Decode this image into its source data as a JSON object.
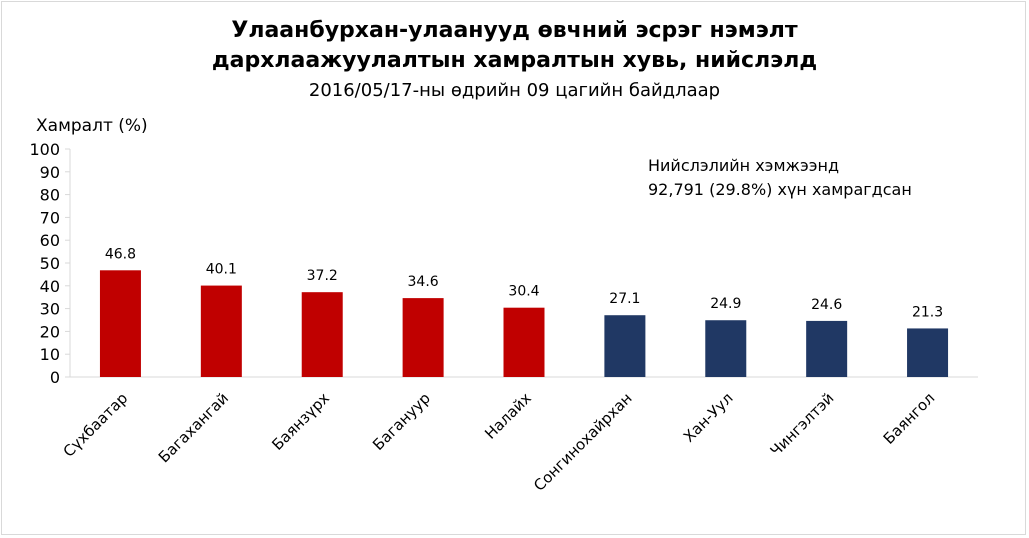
{
  "chart_data": {
    "type": "bar",
    "title": [
      "Улаанбурхан-улаанууд өвчний эсрэг нэмэлт",
      "дархлаажуулалтын хамралтын хувь, нийслэлд"
    ],
    "subtitle": "2016/05/17-ны өдрийн 09 цагийн байдлаар",
    "xlabel": "",
    "ylabel": "Хамралт (%)",
    "ylim": [
      0,
      100
    ],
    "yticks": [
      "0",
      "10",
      "20",
      "30",
      "40",
      "50",
      "60",
      "70",
      "80",
      "90",
      "100"
    ],
    "categories": [
      "Сүхбаатар",
      "Багахангай",
      "Баянзүрх",
      "Багануур",
      "Налайх",
      "Сонгинохайрхан",
      "Хан-Уул",
      "Чингэлтэй",
      "Баянгол"
    ],
    "values": [
      46.8,
      40.1,
      37.2,
      34.6,
      30.4,
      27.1,
      24.9,
      24.6,
      21.3
    ],
    "value_labels": [
      "46.8",
      "40.1",
      "37.2",
      "34.6",
      "30.4",
      "27.1",
      "24.9",
      "24.6",
      "21.3"
    ],
    "bar_colors": [
      "#C00000",
      "#C00000",
      "#C00000",
      "#C00000",
      "#C00000",
      "#203864",
      "#203864",
      "#203864",
      "#203864"
    ],
    "grid": false,
    "legend": "none",
    "annotation": [
      "Нийслэлийн хэмжээнд",
      "92,791 (29.8%) хүн хамрагдсан"
    ]
  }
}
